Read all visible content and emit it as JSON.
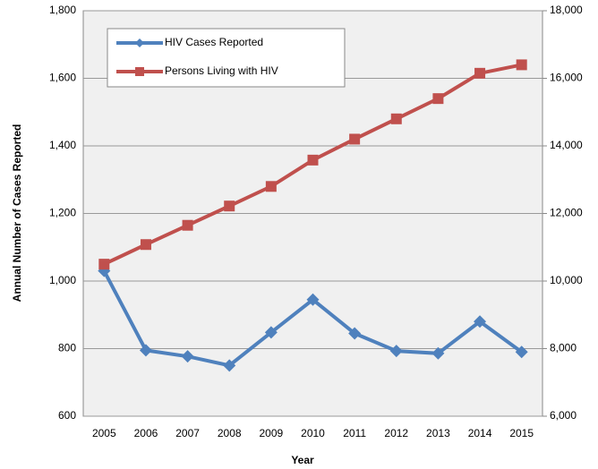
{
  "chart_data": {
    "type": "line",
    "y_label": "Annual Number of Cases Reported",
    "x_label": "Year",
    "categories": [
      "2005",
      "2006",
      "2007",
      "2008",
      "2009",
      "2010",
      "2011",
      "2012",
      "2013",
      "2014",
      "2015"
    ],
    "series": [
      {
        "name": "HIV Cases Reported",
        "color": "#4f81bd",
        "marker": "diamond",
        "axis": "y",
        "values": [
          1030,
          795,
          777,
          750,
          848,
          945,
          845,
          793,
          786,
          880,
          790
        ]
      },
      {
        "name": "Persons Living with HIV",
        "color": "#c0504d",
        "marker": "square",
        "axis": "y2",
        "values": [
          10500,
          11080,
          11650,
          12220,
          12800,
          13580,
          14200,
          14800,
          15400,
          16150,
          16400
        ]
      }
    ],
    "ylim": [
      600,
      1800
    ],
    "yticks": [
      600,
      800,
      {
        "value": 1000,
        "label": "1,000"
      },
      {
        "value": 1200,
        "label": "1,200"
      },
      {
        "value": 1400,
        "label": "1,400"
      },
      {
        "value": 1600,
        "label": "1,600"
      },
      {
        "value": 1800,
        "label": "1,800"
      }
    ],
    "y2lim": [
      6000,
      18000
    ],
    "y2ticks": [
      {
        "value": 6000,
        "label": "6,000"
      },
      {
        "value": 8000,
        "label": "8,000"
      },
      {
        "value": 10000,
        "label": "10,000"
      },
      {
        "value": 12000,
        "label": "12,000"
      },
      {
        "value": 14000,
        "label": "14,000"
      },
      {
        "value": 16000,
        "label": "16,000"
      },
      {
        "value": 18000,
        "label": "18,000"
      }
    ],
    "grid": true,
    "legend": "upper-left"
  }
}
